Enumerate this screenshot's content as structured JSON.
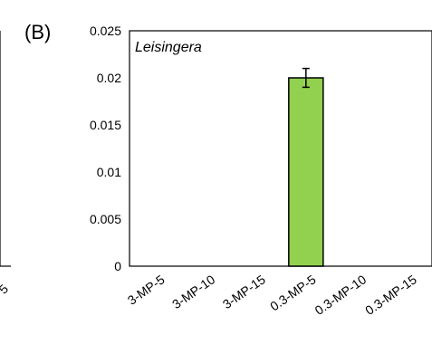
{
  "chart_data": {
    "type": "bar",
    "panel_label": "(B)",
    "title": "Leisingera",
    "categories": [
      "3-MP-5",
      "3-MP-10",
      "3-MP-15",
      "0.3-MP-5",
      "0.3-MP-10",
      "0.3-MP-15"
    ],
    "values": [
      0,
      0,
      0,
      0.02,
      0,
      0
    ],
    "error": [
      0,
      0,
      0,
      0.001,
      0,
      0
    ],
    "ylim": [
      0,
      0.025
    ],
    "yticks": [
      "0",
      "0.005",
      "0.01",
      "0.015",
      "0.02",
      "0.025"
    ],
    "ytick_values": [
      0,
      0.005,
      0.01,
      0.015,
      0.02,
      0.025
    ],
    "left_panel_tick_fragment": "5",
    "bar_color": "#92d050",
    "grid": false,
    "xlabel": "",
    "ylabel": ""
  }
}
